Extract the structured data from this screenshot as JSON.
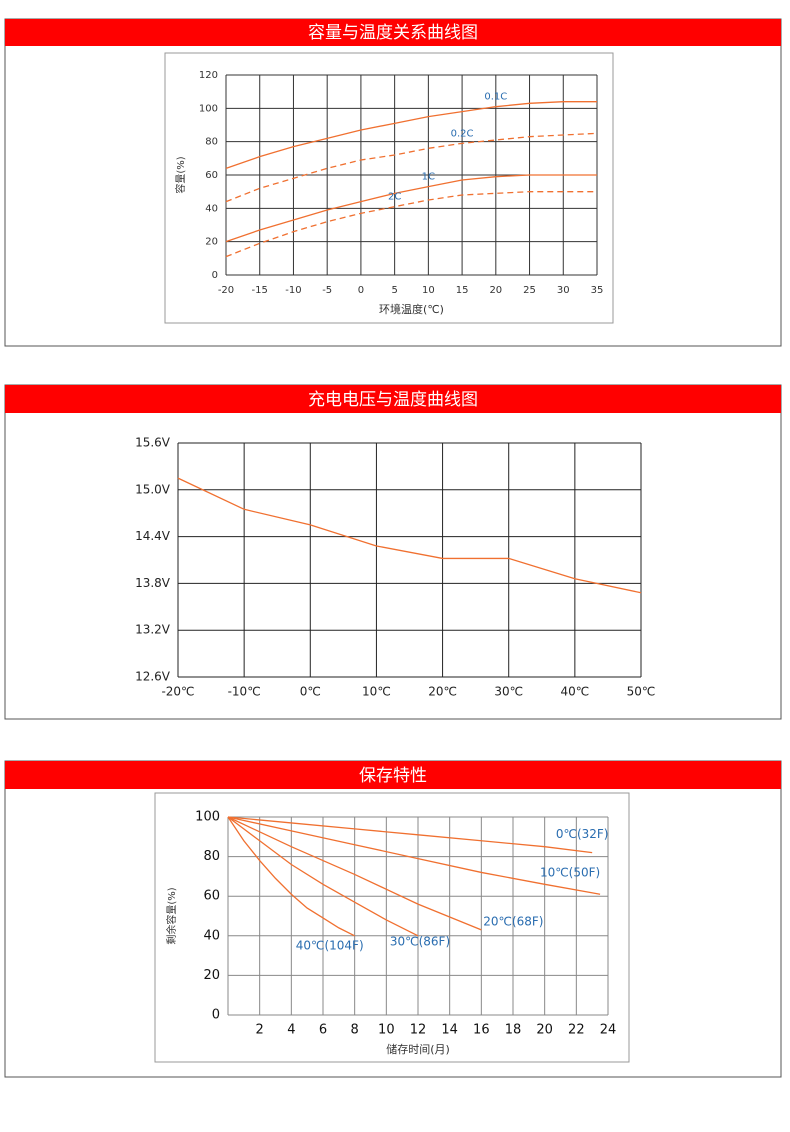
{
  "chart_data": [
    {
      "type": "line",
      "title": "容量与温度关系曲线图",
      "xlabel": "环境温度(℃)",
      "ylabel": "容量(%)",
      "x": [
        -20,
        -15,
        -10,
        -5,
        0,
        5,
        10,
        15,
        20,
        25,
        30,
        35
      ],
      "xlim": [
        -20,
        35
      ],
      "xticks": [
        -20,
        -15,
        -10,
        -5,
        0,
        5,
        10,
        15,
        20,
        25,
        30,
        35
      ],
      "ylim": [
        0,
        120
      ],
      "yticks": [
        0,
        20,
        40,
        60,
        80,
        100,
        120
      ],
      "grid": true,
      "series": [
        {
          "name": "0.1C",
          "color": "#f07030",
          "dashed": false,
          "values": [
            64,
            71,
            77,
            82,
            87,
            91,
            95,
            98,
            101,
            103,
            104,
            104
          ]
        },
        {
          "name": "0.2C",
          "color": "#f07030",
          "dashed": true,
          "values": [
            44,
            52,
            58,
            64,
            69,
            72,
            76,
            79,
            81,
            83,
            84,
            85
          ]
        },
        {
          "name": "1C",
          "color": "#f07030",
          "dashed": false,
          "values": [
            20,
            27,
            33,
            39,
            44,
            49,
            53,
            57,
            59,
            60,
            60,
            60
          ]
        },
        {
          "name": "2C",
          "color": "#f07030",
          "dashed": true,
          "values": [
            11,
            19,
            26,
            32,
            37,
            41,
            45,
            48,
            49,
            50,
            50,
            50
          ]
        }
      ]
    },
    {
      "type": "line",
      "title": "充电电压与温度曲线图",
      "x": [
        -20,
        -10,
        0,
        10,
        20,
        30,
        40,
        50
      ],
      "xlim": [
        -20,
        50
      ],
      "xticks": [
        {
          "value": -20,
          "label": "-20℃"
        },
        {
          "value": -10,
          "label": "-10℃"
        },
        {
          "value": 0,
          "label": "0℃"
        },
        {
          "value": 10,
          "label": "10℃"
        },
        {
          "value": 20,
          "label": "20℃"
        },
        {
          "value": 30,
          "label": "30℃"
        },
        {
          "value": 40,
          "label": "40℃"
        },
        {
          "value": 50,
          "label": "50℃"
        }
      ],
      "ylim": [
        12.6,
        15.6
      ],
      "yticks": [
        {
          "value": 12.6,
          "label": "12.6V"
        },
        {
          "value": 13.2,
          "label": "13.2V"
        },
        {
          "value": 13.8,
          "label": "13.8V"
        },
        {
          "value": 14.4,
          "label": "14.4V"
        },
        {
          "value": 15.0,
          "label": "15.0V"
        },
        {
          "value": 15.6,
          "label": "15.6V"
        }
      ],
      "grid": true,
      "series": [
        {
          "color": "#f07030",
          "dashed": false,
          "values": [
            15.15,
            14.75,
            14.55,
            14.28,
            14.12,
            14.12,
            13.86,
            13.68
          ]
        }
      ]
    },
    {
      "type": "line",
      "title": "保存特性",
      "xlabel": "储存时间(月)",
      "ylabel": "剩余容量(%)",
      "xlim": [
        0,
        24
      ],
      "xticks": [
        2,
        4,
        6,
        8,
        10,
        12,
        14,
        16,
        18,
        20,
        22,
        24
      ],
      "ylim": [
        0,
        100
      ],
      "yticks": [
        0,
        20,
        40,
        60,
        80,
        100
      ],
      "grid": true,
      "series": [
        {
          "name": "0℃(32F)",
          "color": "#f07030",
          "dashed": false,
          "x": [
            0,
            4,
            8,
            12,
            16,
            20,
            23
          ],
          "values": [
            100,
            97,
            94,
            91,
            88,
            85,
            82
          ]
        },
        {
          "name": "10℃(50F)",
          "color": "#f07030",
          "dashed": false,
          "x": [
            0,
            4,
            8,
            12,
            16,
            20,
            23.5
          ],
          "values": [
            100,
            93,
            86,
            79,
            72,
            66,
            61
          ]
        },
        {
          "name": "20℃(68F)",
          "color": "#f07030",
          "dashed": false,
          "x": [
            0,
            4,
            8,
            12,
            16
          ],
          "values": [
            100,
            85,
            71,
            56,
            43
          ]
        },
        {
          "name": "30℃(86F)",
          "color": "#f07030",
          "dashed": false,
          "x": [
            0,
            2,
            4,
            6,
            8,
            10,
            12
          ],
          "values": [
            100,
            88,
            76,
            66,
            57,
            48,
            40
          ]
        },
        {
          "name": "40℃(104F)",
          "color": "#f07030",
          "dashed": false,
          "x": [
            0,
            1,
            2,
            3,
            4,
            5,
            6,
            7,
            8
          ],
          "values": [
            100,
            88,
            78,
            69,
            61,
            54,
            49,
            44,
            40
          ]
        }
      ]
    }
  ]
}
